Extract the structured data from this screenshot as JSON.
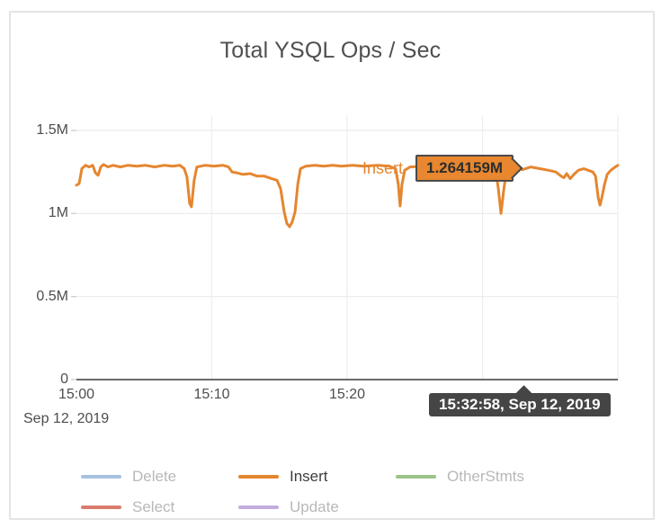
{
  "title": "Total YSQL Ops / Sec",
  "chart_data": {
    "type": "line",
    "title": "Total YSQL Ops / Sec",
    "x_axis": {
      "t_min_s": 0,
      "t_max_s": 2400,
      "date_label": "Sep 12, 2019",
      "visible_ticks": [
        {
          "t": 0,
          "label": "15:00"
        },
        {
          "t": 600,
          "label": "15:10"
        },
        {
          "t": 1200,
          "label": "15:20"
        }
      ],
      "gridline_interval_s": 600
    },
    "y_axis": {
      "min": 0,
      "max": 1.5,
      "unit": "M ops/sec",
      "ticks": [
        {
          "v": 0,
          "label": "0"
        },
        {
          "v": 0.5,
          "label": "0.5M"
        },
        {
          "v": 1,
          "label": "1M"
        },
        {
          "v": 1.5,
          "label": "1.5M"
        }
      ]
    },
    "series": [
      {
        "name": "Delete",
        "color": "#a7c2e0",
        "points": []
      },
      {
        "name": "Insert",
        "color": "#e5862f",
        "points": [
          [
            0,
            1.17
          ],
          [
            12,
            1.18
          ],
          [
            24,
            1.27
          ],
          [
            40,
            1.29
          ],
          [
            56,
            1.28
          ],
          [
            72,
            1.29
          ],
          [
            84,
            1.245
          ],
          [
            96,
            1.23
          ],
          [
            108,
            1.28
          ],
          [
            120,
            1.295
          ],
          [
            140,
            1.28
          ],
          [
            163,
            1.29
          ],
          [
            195,
            1.28
          ],
          [
            227,
            1.29
          ],
          [
            267,
            1.285
          ],
          [
            307,
            1.29
          ],
          [
            347,
            1.28
          ],
          [
            387,
            1.29
          ],
          [
            427,
            1.285
          ],
          [
            459,
            1.29
          ],
          [
            478,
            1.27
          ],
          [
            490,
            1.22
          ],
          [
            502,
            1.06
          ],
          [
            510,
            1.04
          ],
          [
            522,
            1.2
          ],
          [
            534,
            1.28
          ],
          [
            570,
            1.29
          ],
          [
            610,
            1.285
          ],
          [
            650,
            1.29
          ],
          [
            674,
            1.28
          ],
          [
            690,
            1.25
          ],
          [
            710,
            1.245
          ],
          [
            738,
            1.235
          ],
          [
            770,
            1.24
          ],
          [
            801,
            1.225
          ],
          [
            833,
            1.225
          ],
          [
            865,
            1.21
          ],
          [
            889,
            1.2
          ],
          [
            905,
            1.15
          ],
          [
            921,
            1.01
          ],
          [
            933,
            0.94
          ],
          [
            945,
            0.92
          ],
          [
            957,
            0.95
          ],
          [
            969,
            1.01
          ],
          [
            981,
            1.175
          ],
          [
            993,
            1.27
          ],
          [
            1017,
            1.285
          ],
          [
            1057,
            1.29
          ],
          [
            1096,
            1.285
          ],
          [
            1136,
            1.29
          ],
          [
            1176,
            1.285
          ],
          [
            1224,
            1.29
          ],
          [
            1272,
            1.285
          ],
          [
            1336,
            1.29
          ],
          [
            1384,
            1.285
          ],
          [
            1415,
            1.27
          ],
          [
            1427,
            1.175
          ],
          [
            1435,
            1.045
          ],
          [
            1443,
            1.175
          ],
          [
            1455,
            1.26
          ],
          [
            1479,
            1.28
          ],
          [
            1535,
            1.285
          ],
          [
            1615,
            1.29
          ],
          [
            1694,
            1.285
          ],
          [
            1774,
            1.29
          ],
          [
            1834,
            1.285
          ],
          [
            1858,
            1.27
          ],
          [
            1870,
            1.15
          ],
          [
            1882,
            1.0
          ],
          [
            1894,
            1.14
          ],
          [
            1906,
            1.26
          ],
          [
            1934,
            1.28
          ],
          [
            1978,
            1.264159
          ],
          [
            2014,
            1.28
          ],
          [
            2054,
            1.27
          ],
          [
            2093,
            1.26
          ],
          [
            2125,
            1.25
          ],
          [
            2149,
            1.225
          ],
          [
            2161,
            1.215
          ],
          [
            2173,
            1.24
          ],
          [
            2189,
            1.21
          ],
          [
            2205,
            1.235
          ],
          [
            2225,
            1.26
          ],
          [
            2249,
            1.27
          ],
          [
            2269,
            1.26
          ],
          [
            2289,
            1.25
          ],
          [
            2301,
            1.225
          ],
          [
            2313,
            1.095
          ],
          [
            2321,
            1.05
          ],
          [
            2329,
            1.095
          ],
          [
            2341,
            1.175
          ],
          [
            2353,
            1.235
          ],
          [
            2369,
            1.26
          ],
          [
            2389,
            1.28
          ],
          [
            2400,
            1.29
          ]
        ]
      },
      {
        "name": "OtherStmts",
        "color": "#9cc489",
        "points": []
      },
      {
        "name": "Select",
        "color": "#d97c6c",
        "points": []
      },
      {
        "name": "Update",
        "color": "#c3abdf",
        "points": []
      }
    ],
    "legend_position": "bottom",
    "grid": true
  },
  "legend": {
    "items": [
      {
        "label": "Delete",
        "color": "#a7c2e0",
        "active": false
      },
      {
        "label": "Insert",
        "color": "#e5862f",
        "active": true
      },
      {
        "label": "OtherStmts",
        "color": "#9cc489",
        "active": false
      },
      {
        "label": "Select",
        "color": "#d97c6c",
        "active": false
      },
      {
        "label": "Update",
        "color": "#c3abdf",
        "active": false
      }
    ]
  },
  "hover": {
    "series_label": "Insert",
    "value_label": "1.264159M",
    "time_label": "15:32:58, Sep 12, 2019",
    "t": 1978,
    "v": 1.264159
  },
  "colors": {
    "accent_orange": "#e5862f",
    "tooltip_dark": "#454545",
    "gridline": "#e9e9e9",
    "axis_line": "#3a3a3a",
    "title_text": "#4f4f4f",
    "axis_text": "#4d4d4d",
    "legend_inactive_text": "#b8b8b8",
    "legend_active_text": "#3d3d3d",
    "panel_border": "#e4e4e4"
  }
}
